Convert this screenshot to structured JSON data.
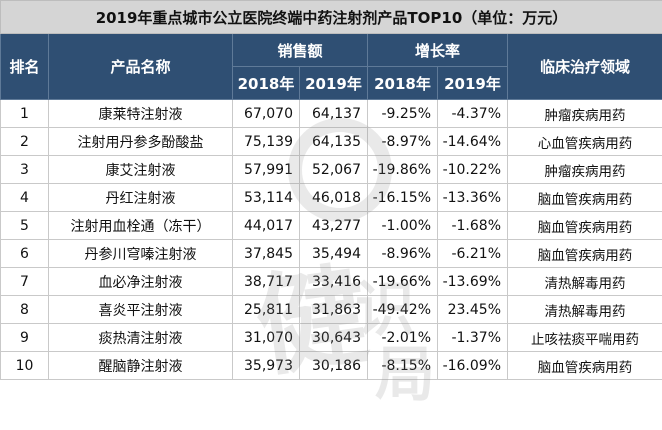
{
  "title": "2019年重点城市公立医院终端中药注射剂产品TOP10（单位：万元）",
  "headers": {
    "rank": "排名",
    "product": "产品名称",
    "sales": "销售额",
    "growth": "增长率",
    "area": "临床治疗领域",
    "year2018": "2018年",
    "year2019": "2019年"
  },
  "rows": [
    {
      "rank": "1",
      "name": "康莱特注射液",
      "sales2018": "67,070",
      "sales2019": "64,137",
      "growth2018": "-9.25%",
      "growth2019": "-4.37%",
      "area": "肿瘤疾病用药"
    },
    {
      "rank": "2",
      "name": "注射用丹参多酚酸盐",
      "sales2018": "75,139",
      "sales2019": "64,135",
      "growth2018": "-8.97%",
      "growth2019": "-14.64%",
      "area": "心血管疾病用药"
    },
    {
      "rank": "3",
      "name": "康艾注射液",
      "sales2018": "57,991",
      "sales2019": "52,067",
      "growth2018": "-19.86%",
      "growth2019": "-10.22%",
      "area": "肿瘤疾病用药"
    },
    {
      "rank": "4",
      "name": "丹红注射液",
      "sales2018": "53,114",
      "sales2019": "46,018",
      "growth2018": "-16.15%",
      "growth2019": "-13.36%",
      "area": "脑血管疾病用药"
    },
    {
      "rank": "5",
      "name": "注射用血栓通（冻干）",
      "sales2018": "44,017",
      "sales2019": "43,277",
      "growth2018": "-1.00%",
      "growth2019": "-1.68%",
      "area": "脑血管疾病用药"
    },
    {
      "rank": "6",
      "name": "丹参川穹嗪注射液",
      "sales2018": "37,845",
      "sales2019": "35,494",
      "growth2018": "-8.96%",
      "growth2019": "-6.21%",
      "area": "脑血管疾病用药"
    },
    {
      "rank": "7",
      "name": "血必净注射液",
      "sales2018": "38,717",
      "sales2019": "33,416",
      "growth2018": "-19.66%",
      "growth2019": "-13.69%",
      "area": "清热解毒用药"
    },
    {
      "rank": "8",
      "name": "喜炎平注射液",
      "sales2018": "25,811",
      "sales2019": "31,863",
      "growth2018": "-49.42%",
      "growth2019": "23.45%",
      "area": "清热解毒用药"
    },
    {
      "rank": "9",
      "name": "痰热清注射液",
      "sales2018": "31,070",
      "sales2019": "30,643",
      "growth2018": "-2.01%",
      "growth2019": "-1.37%",
      "area": "止咳祛痰平喘用药"
    },
    {
      "rank": "10",
      "name": "醒脑静注射液",
      "sales2018": "35,973",
      "sales2019": "30,186",
      "growth2018": "-8.15%",
      "growth2019": "-16.09%",
      "area": "脑血管疾病用药"
    }
  ],
  "watermark": {
    "text": "健识局"
  }
}
